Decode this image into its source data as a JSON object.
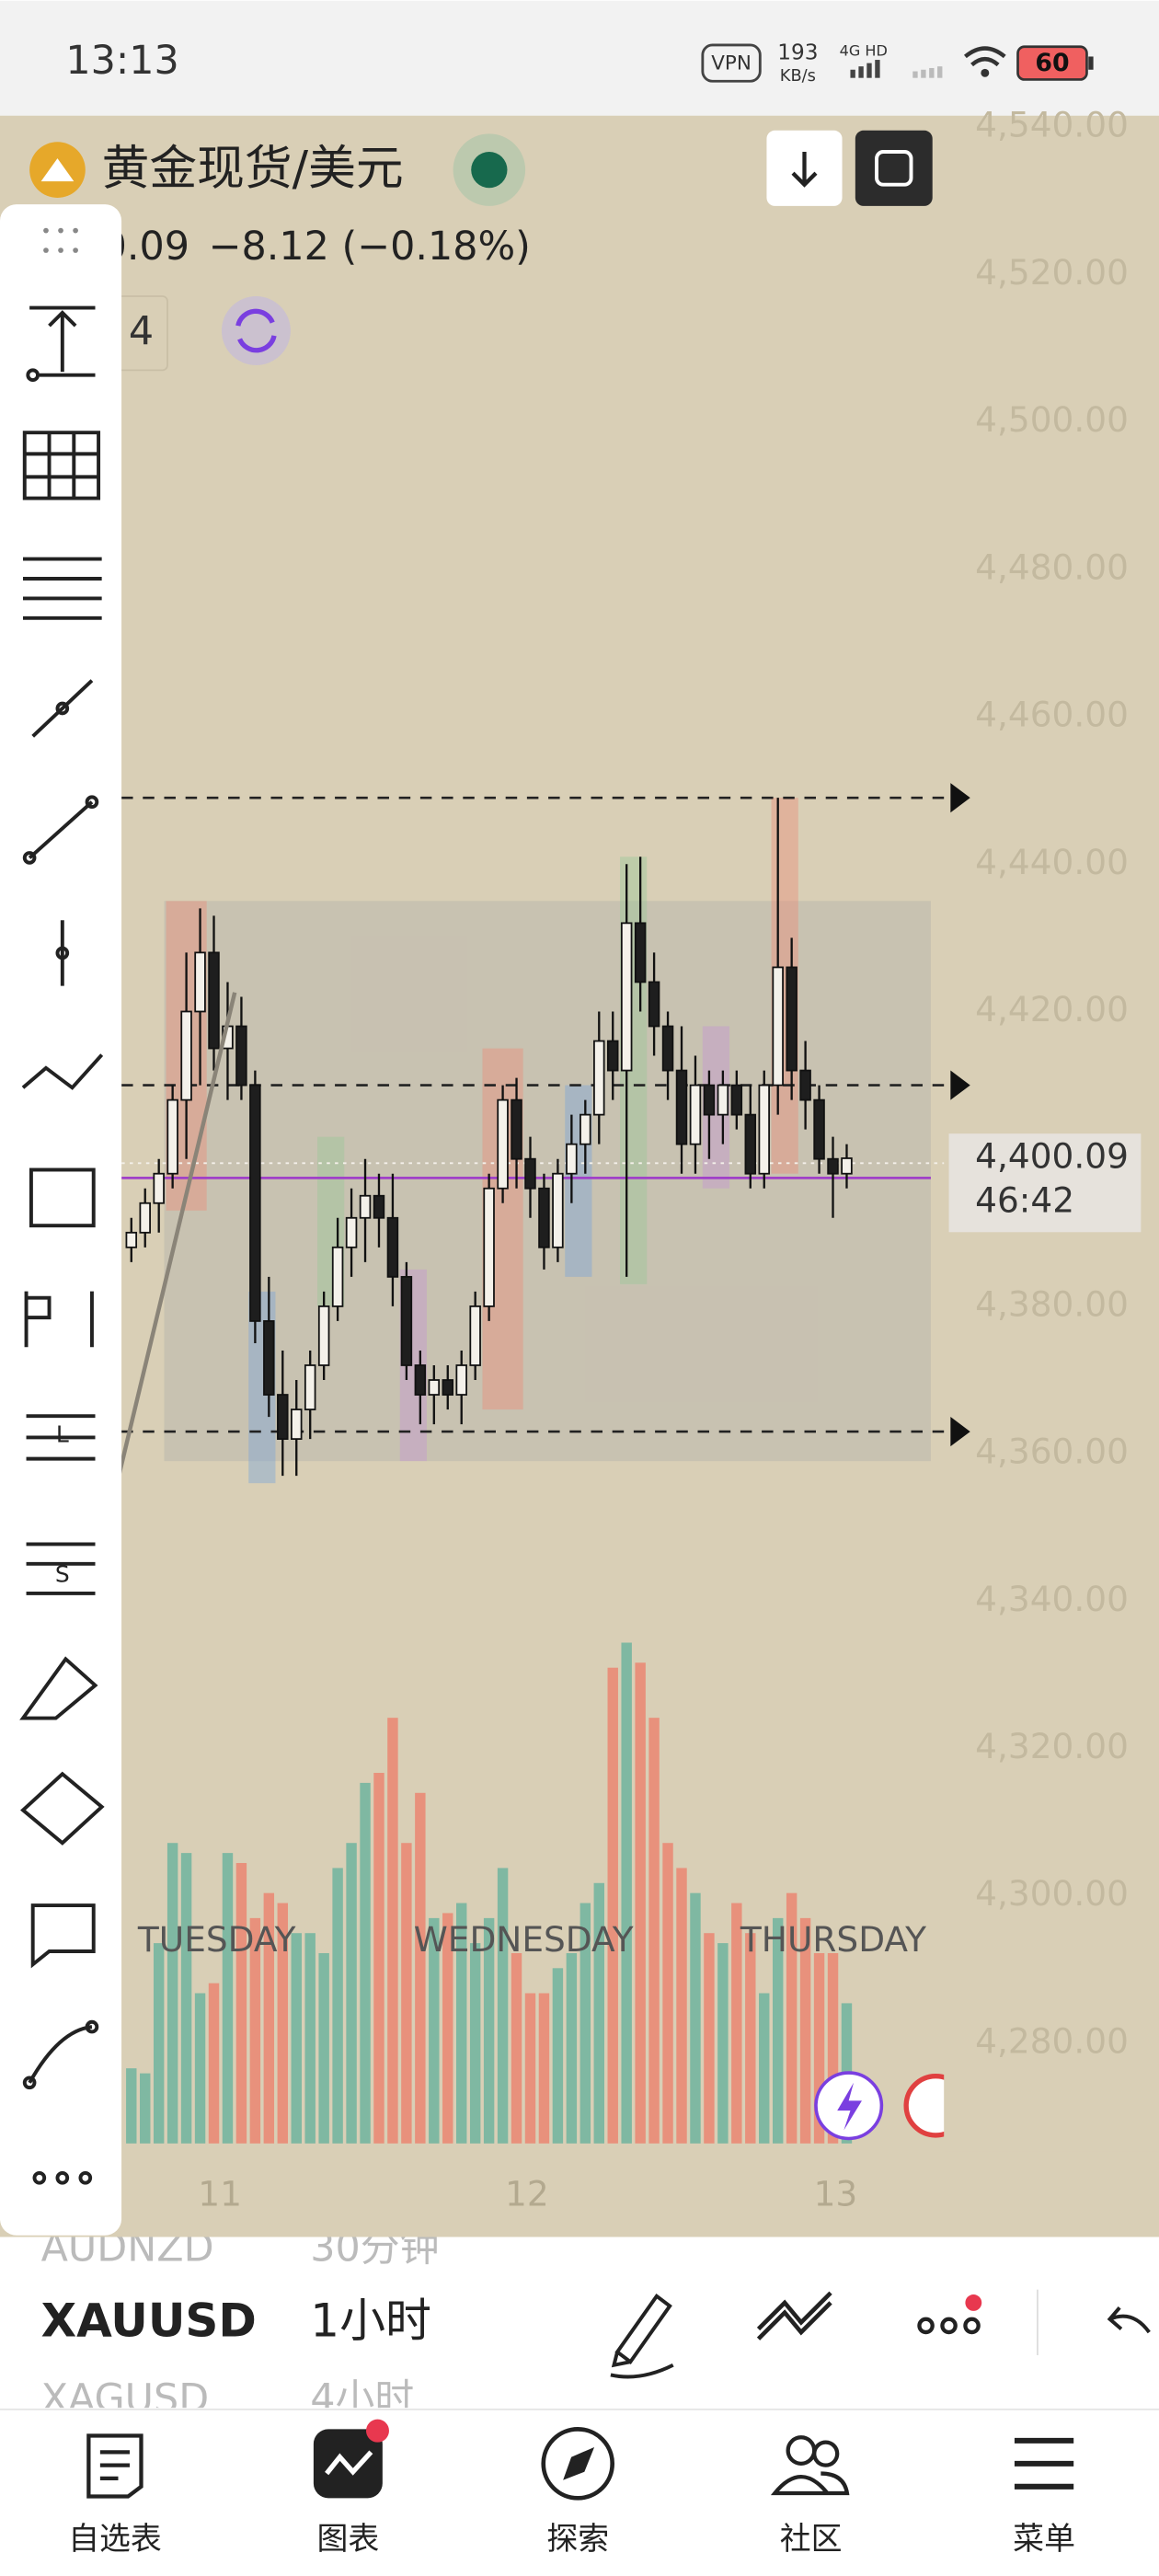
{
  "status_bar": {
    "time": "13:13",
    "vpn": "VPN",
    "speed": "193",
    "speed_unit": "KB/s",
    "network": "4G HD",
    "battery": "60"
  },
  "header": {
    "symbol": "黄金现货/美元",
    "price_partial": "0.09",
    "change": "−8.12 (−0.18%)",
    "interval_partial": "4"
  },
  "toolbar": {
    "letters": [
      "L",
      "S"
    ]
  },
  "chart_data": {
    "type": "candlestick",
    "ohlc": [
      [
        4388,
        4392,
        4386,
        4390
      ],
      [
        4390,
        4396,
        4388,
        4394
      ],
      [
        4394,
        4400,
        4390,
        4398
      ],
      [
        4398,
        4410,
        4396,
        4408
      ],
      [
        4408,
        4428,
        4400,
        4420
      ],
      [
        4420,
        4434,
        4410,
        4428
      ],
      [
        4428,
        4433,
        4412,
        4415
      ],
      [
        4415,
        4424,
        4408,
        4418
      ],
      [
        4418,
        4422,
        4408,
        4410
      ],
      [
        4410,
        4412,
        4375,
        4378
      ],
      [
        4378,
        4384,
        4365,
        4368
      ],
      [
        4368,
        4374,
        4357,
        4362
      ],
      [
        4362,
        4370,
        4357,
        4366
      ],
      [
        4366,
        4374,
        4362,
        4372
      ],
      [
        4372,
        4382,
        4370,
        4380
      ],
      [
        4380,
        4392,
        4378,
        4388
      ],
      [
        4388,
        4396,
        4384,
        4392
      ],
      [
        4392,
        4400,
        4386,
        4395
      ],
      [
        4395,
        4398,
        4388,
        4392
      ],
      [
        4392,
        4398,
        4380,
        4384
      ],
      [
        4384,
        4386,
        4370,
        4372
      ],
      [
        4372,
        4374,
        4364,
        4368
      ],
      [
        4368,
        4372,
        4364,
        4370
      ],
      [
        4370,
        4372,
        4366,
        4368
      ],
      [
        4368,
        4374,
        4364,
        4372
      ],
      [
        4372,
        4382,
        4370,
        4380
      ],
      [
        4380,
        4398,
        4378,
        4396
      ],
      [
        4396,
        4410,
        4394,
        4408
      ],
      [
        4408,
        4411,
        4396,
        4400
      ],
      [
        4400,
        4403,
        4392,
        4396
      ],
      [
        4396,
        4398,
        4385,
        4388
      ],
      [
        4388,
        4400,
        4386,
        4398
      ],
      [
        4398,
        4406,
        4394,
        4402
      ],
      [
        4402,
        4408,
        4398,
        4406
      ],
      [
        4406,
        4420,
        4402,
        4416
      ],
      [
        4416,
        4420,
        4408,
        4412
      ],
      [
        4412,
        4440,
        4384,
        4432
      ],
      [
        4432,
        4441,
        4420,
        4424
      ],
      [
        4424,
        4428,
        4414,
        4418
      ],
      [
        4418,
        4420,
        4408,
        4412
      ],
      [
        4412,
        4418,
        4398,
        4402
      ],
      [
        4402,
        4414,
        4398,
        4410
      ],
      [
        4410,
        4412,
        4400,
        4406
      ],
      [
        4406,
        4412,
        4402,
        4410
      ],
      [
        4410,
        4412,
        4404,
        4406
      ],
      [
        4406,
        4410,
        4396,
        4398
      ],
      [
        4398,
        4412,
        4396,
        4410
      ],
      [
        4410,
        4449,
        4406,
        4426
      ],
      [
        4426,
        4430,
        4408,
        4412
      ],
      [
        4412,
        4416,
        4404,
        4408
      ],
      [
        4408,
        4410,
        4398,
        4400
      ],
      [
        4400,
        4403,
        4392,
        4398
      ],
      [
        4398,
        4402,
        4396,
        4400.09
      ]
    ],
    "volume": [
      15,
      14,
      40,
      60,
      58,
      30,
      32,
      58,
      56,
      45,
      50,
      48,
      42,
      42,
      38,
      55,
      60,
      72,
      74,
      85,
      60,
      70,
      45,
      46,
      48,
      40,
      45,
      55,
      38,
      30,
      30,
      35,
      38,
      48,
      52,
      95,
      100,
      96,
      85,
      60,
      55,
      50,
      42,
      40,
      48,
      42,
      30,
      45,
      50,
      45,
      38,
      38,
      28
    ],
    "up_color": "#7fb8a2",
    "down_color": "#e8917c",
    "ylim": [
      4280,
      4540
    ],
    "yticks": [
      {
        "value": 4540,
        "label": "4,540.00"
      },
      {
        "value": 4520,
        "label": "4,520.00"
      },
      {
        "value": 4500,
        "label": "4,500.00"
      },
      {
        "value": 4480,
        "label": "4,480.00"
      },
      {
        "value": 4460,
        "label": "4,460.00"
      },
      {
        "value": 4440,
        "label": "4,440.00"
      },
      {
        "value": 4420,
        "label": "4,420.00"
      },
      {
        "value": 4400,
        "label": "4,400.00"
      },
      {
        "value": 4380,
        "label": "4,380.00"
      },
      {
        "value": 4360,
        "label": "4,360.00"
      },
      {
        "value": 4340,
        "label": "4,340.00"
      },
      {
        "value": 4320,
        "label": "4,320.00"
      },
      {
        "value": 4300,
        "label": "4,300.00"
      },
      {
        "value": 4280,
        "label": "4,280.00"
      }
    ],
    "levels": [
      4449,
      4410,
      4363
    ],
    "range_box": [
      4359,
      4435
    ],
    "zones": [
      {
        "top": 4435,
        "bottom": 4393,
        "color": "#e8917c"
      },
      {
        "top": 4382,
        "bottom": 4356,
        "color": "#7fa6d8"
      },
      {
        "top": 4403,
        "bottom": 4380,
        "color": "#9cc79a"
      },
      {
        "top": 4385,
        "bottom": 4359,
        "color": "#c49ad0"
      },
      {
        "top": 4415,
        "bottom": 4366,
        "color": "#e8917c"
      },
      {
        "top": 4410,
        "bottom": 4384,
        "color": "#7fa6d8"
      },
      {
        "top": 4441,
        "bottom": 4383,
        "color": "#9cc79a"
      },
      {
        "top": 4418,
        "bottom": 4396,
        "color": "#c49ad0"
      },
      {
        "top": 4449,
        "bottom": 4398,
        "color": "#e8917c"
      }
    ],
    "last_price": {
      "value": 4400.09,
      "label": "4,400.09"
    },
    "countdown": "46:42",
    "day_labels": [
      "TUESDAY",
      "WEDNESDAY",
      "THURSDAY"
    ],
    "day_ticks": [
      "11",
      "12",
      "13"
    ]
  },
  "symbol_picker": {
    "rows": [
      [
        "AUDNZD",
        "30分钟"
      ],
      [
        "XAUUSD",
        "1小时"
      ],
      [
        "XAGUSD",
        "4小时"
      ]
    ]
  },
  "nav": {
    "items": [
      "自选表",
      "图表",
      "探索",
      "社区",
      "菜单"
    ]
  }
}
